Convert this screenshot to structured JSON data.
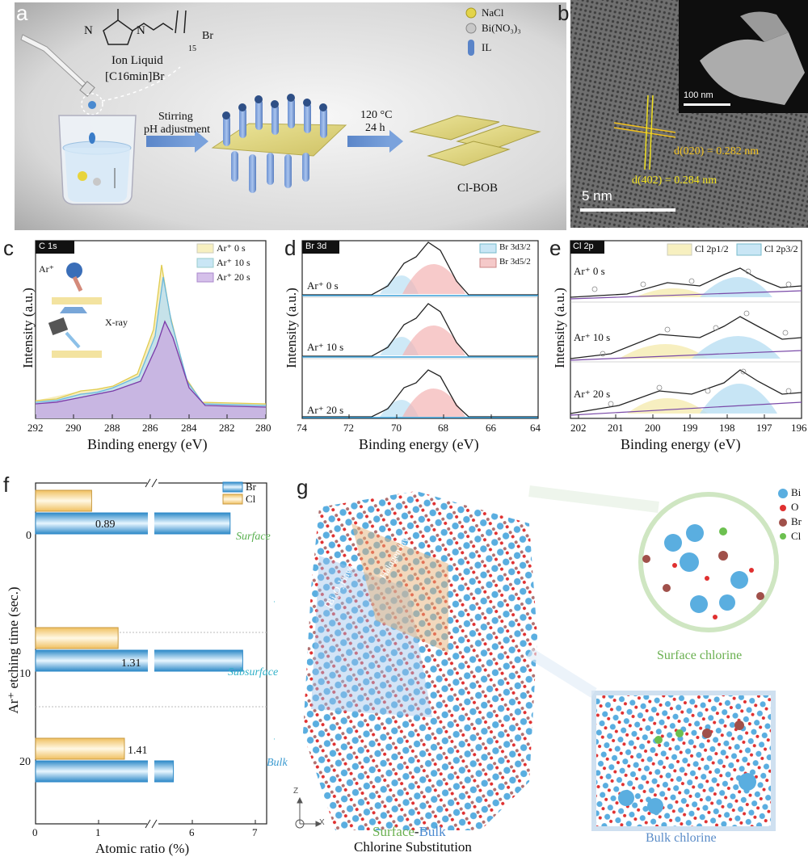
{
  "panels": {
    "a": {
      "letter": "a",
      "il_name": "Ion Liquid",
      "il_formula": "[C16min]Br",
      "subscript_15": "15",
      "br_minus": "Br",
      "n_plus": "N",
      "n_label": "N",
      "legend": [
        {
          "label": "NaCl",
          "color": "#e3d44a"
        },
        {
          "label": "Bi(NO₃)₃",
          "color": "#c8c8c8"
        },
        {
          "label": "IL",
          "color": "#5a84c8"
        }
      ],
      "step1_line1": "Stirring",
      "step1_line2": "pH adjustment",
      "step2_line1": "120 °C",
      "step2_line2": "24 h",
      "product": "Cl-BOB"
    },
    "b": {
      "letter": "b",
      "scale_main": "5 nm",
      "scale_inset": "100 nm",
      "d1": "d(020) = 0.282 nm",
      "d2": "d(402) = 0.284 nm"
    },
    "c": {
      "letter": "c",
      "tag": "C 1s",
      "ylabel": "Intensity (a.u.)",
      "xlabel": "Binding energy (eV)",
      "xticks": [
        "292",
        "290",
        "288",
        "286",
        "284",
        "282",
        "280"
      ],
      "legend": [
        "Ar⁺ 0 s",
        "Ar⁺ 10 s",
        "Ar⁺ 20 s"
      ],
      "inset_ar": "Ar⁺",
      "inset_xray": "X-ray"
    },
    "d": {
      "letter": "d",
      "tag": "Br 3d",
      "ylabel": "Intensity (a.u.)",
      "xlabel": "Binding energy (eV)",
      "xticks": [
        "74",
        "72",
        "70",
        "68",
        "66",
        "64"
      ],
      "legend": [
        "Br 3d3/2",
        "Br 3d5/2"
      ],
      "rows": [
        "Ar⁺ 0 s",
        "Ar⁺ 10 s",
        "Ar⁺ 20 s"
      ]
    },
    "e": {
      "letter": "e",
      "tag": "Cl 2p",
      "ylabel": "Intensity (a.u.)",
      "xlabel": "Binding energy (eV)",
      "xticks": [
        "202",
        "201",
        "200",
        "199",
        "198",
        "197",
        "196"
      ],
      "legend": [
        "Cl 2p1/2",
        "Cl 2p3/2"
      ],
      "rows": [
        "Ar⁺ 0 s",
        "Ar⁺ 10 s",
        "Ar⁺ 20 s"
      ]
    },
    "g": {
      "letter": "g",
      "legend": [
        {
          "label": "Bi",
          "color": "#5aaee0"
        },
        {
          "label": "O",
          "color": "#e03030"
        },
        {
          "label": "Br",
          "color": "#a0504a"
        },
        {
          "label": "Cl",
          "color": "#6cc050"
        }
      ],
      "surface_label": "Surface chlorine",
      "bulk_label": "Bulk chlorine",
      "layer1": "[Bi₂O₂] layer",
      "layer2": "Halogen layer",
      "caption_surface": "Surface",
      "caption_dash": "-",
      "caption_bulk": "Bulk",
      "caption_line2": "Chlorine Substitution",
      "axis_z": "Z",
      "axis_x": "X"
    }
  },
  "chart_data": {
    "type": "bar",
    "title": "",
    "letter": "f",
    "orientation": "horizontal",
    "xlabel": "Atomic ratio (%)",
    "ylabel": "Ar⁺ etching time (sec.)",
    "categories": [
      "0",
      "10",
      "20"
    ],
    "stage_labels": [
      "Surface",
      "Subsurface",
      "Bulk"
    ],
    "xticks": [
      "0",
      "1",
      "6",
      "7"
    ],
    "axis_break": true,
    "series": [
      {
        "name": "Br",
        "values": [
          6.6,
          6.8,
          5.7
        ],
        "color": "#4aa8d8"
      },
      {
        "name": "Cl",
        "values": [
          0.89,
          1.31,
          1.41
        ],
        "color": "#f5d48a"
      }
    ],
    "cl_labels": [
      "0.89",
      "1.31",
      "1.41"
    ],
    "grid": false,
    "legend": "top-right"
  }
}
